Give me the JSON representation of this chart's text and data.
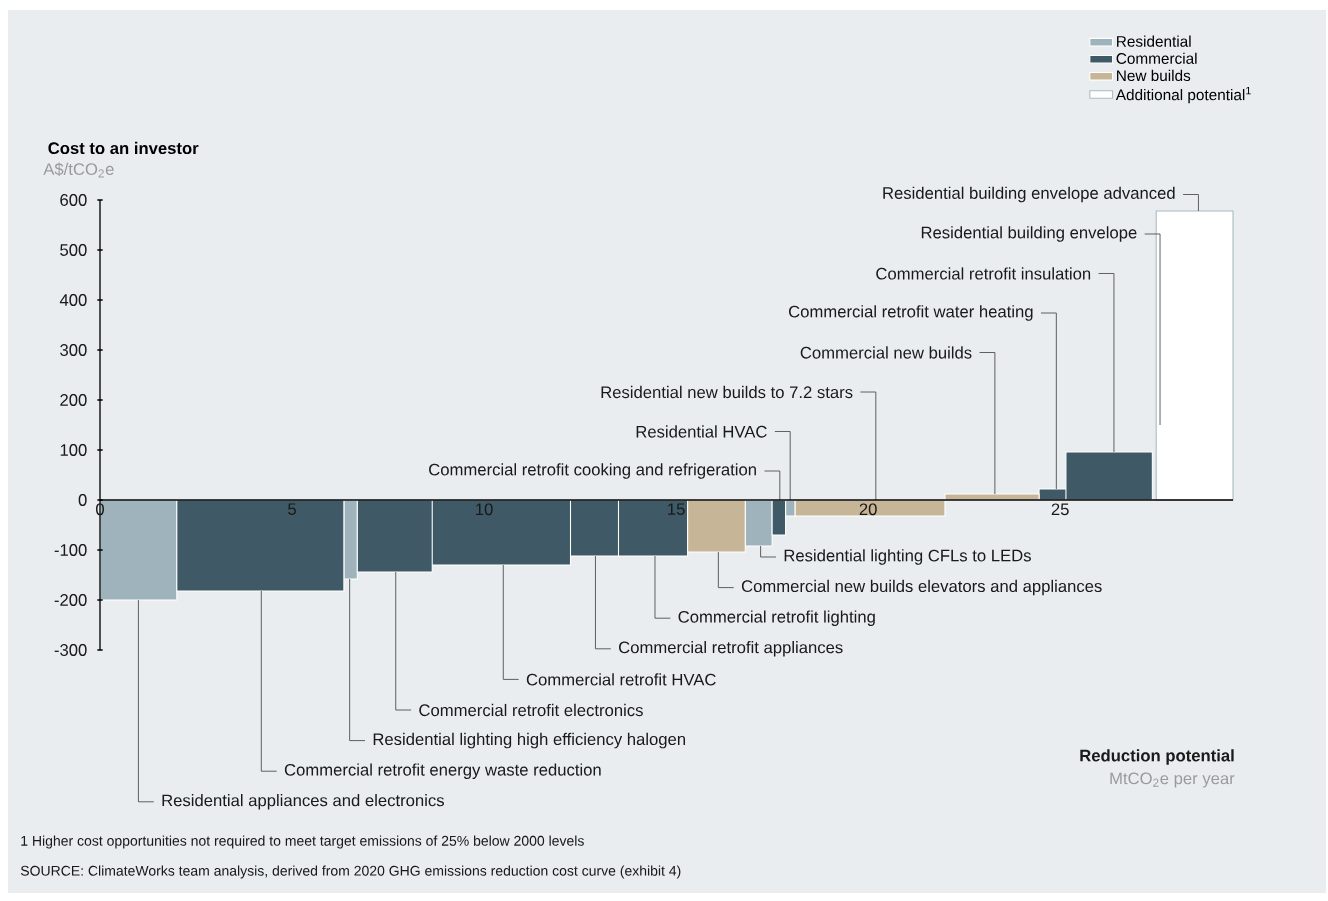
{
  "chart_data": {
    "type": "area",
    "ylabel": "Cost to an investor",
    "xlim": [
      0,
      29.5
    ],
    "xticks": [
      0,
      5,
      10,
      15,
      20,
      25
    ],
    "ylim": [
      -300,
      600
    ],
    "yticks": [
      -300,
      -200,
      -100,
      0,
      100,
      200,
      300,
      400,
      500,
      600
    ],
    "legend": "top right",
    "series": [
      {
        "name": "Residential",
        "color": "#9fb3bd",
        "x": [
          0,
          0,
          2,
          2,
          6.35,
          6.35,
          6.7,
          6.7,
          16.8,
          16.8,
          17.5,
          17.5,
          17.85,
          17.85,
          18.1,
          18.1
        ],
        "values": [
          0,
          -200,
          -200,
          0,
          0,
          -158,
          -158,
          0,
          0,
          -92,
          -92,
          0,
          0,
          -32,
          -32,
          0
        ]
      },
      {
        "name": "Commercial",
        "color": "#3f5a66",
        "x": [
          2,
          2,
          6.35,
          6.35,
          6.7,
          6.7,
          8.65,
          8.65,
          8.65,
          8.65,
          12.25,
          12.25,
          12.25,
          12.25,
          13.5,
          13.5,
          13.5,
          13.5,
          15.3,
          15.3,
          17.5,
          17.5,
          17.85,
          17.85,
          24.45,
          24.45,
          25.15,
          25.15,
          25.15,
          25.15,
          27.4,
          27.4
        ],
        "values": [
          0,
          -182,
          -182,
          0,
          0,
          -144,
          -144,
          0,
          0,
          -130,
          -130,
          0,
          0,
          -112,
          -112,
          0,
          0,
          -112,
          -112,
          0,
          0,
          -70,
          -70,
          0,
          0,
          22,
          22,
          0,
          0,
          96,
          96,
          0
        ]
      },
      {
        "name": "New builds",
        "color": "#c6b596",
        "x": [
          15.3,
          15.3,
          16.8,
          16.8,
          18.1,
          18.1,
          22,
          22,
          22,
          22,
          24.45,
          24.45
        ],
        "values": [
          0,
          -104,
          -104,
          0,
          0,
          -32,
          -32,
          0,
          0,
          12,
          12,
          0
        ]
      },
      {
        "name": "Additional potential$^{1}$",
        "color": "#ffffff",
        "x": [
          27.5,
          27.5,
          29.5,
          29.5
        ],
        "values": [
          0,
          578,
          578,
          0
        ]
      }
    ],
    "annotations": [
      "A$/tCO$_{2}$e",
      "**Reduction potential**",
      "MtCO$_{2}$e per year",
      "1 Higher cost opportunities not required to meet target emissions of 25% below 2000 levels",
      "SOURCE: ClimateWorks team analysis, derived from 2020 GHG emissions reduction cost curve (exhibit 4)",
      {
        "text": "Residential appliances and electronics",
        "x": 1.0,
        "y": -200
      },
      {
        "text": "Commercial retrofit energy waste reduction",
        "x": 4.2,
        "y": -182
      },
      {
        "text": "Residential lighting high efficiency halogen",
        "x": 6.5,
        "y": -158
      },
      {
        "text": "Commercial retrofit electronics",
        "x": 7.7,
        "y": -144
      },
      {
        "text": "Commercial retrofit HVAC",
        "x": 10.5,
        "y": -130
      },
      {
        "text": "Commercial retrofit appliances",
        "x": 12.9,
        "y": -112
      },
      {
        "text": "Commercial retrofit lighting",
        "x": 14.45,
        "y": -112
      },
      {
        "text": "Commercial new builds elevators and appliances",
        "x": 16.1,
        "y": -104
      },
      {
        "text": "Residential lighting CFLs to LEDs",
        "x": 17.2,
        "y": -92
      },
      {
        "text": "Commercial retrofit cooking and refrigeration",
        "x": 17.7,
        "y": 0
      },
      {
        "text": "Residential HVAC",
        "x": 17.97,
        "y": 0
      },
      {
        "text": "Residential new builds to 7.2 stars",
        "x": 20.2,
        "y": 0
      },
      {
        "text": "Commercial new builds",
        "x": 23.3,
        "y": 12
      },
      {
        "text": "Commercial retrofit water heating",
        "x": 24.9,
        "y": 22
      },
      {
        "text": "Commercial retrofit insulation",
        "x": 26.4,
        "y": 96
      },
      {
        "text": "Residential building envelope",
        "x": 27.6,
        "y": 150
      },
      {
        "text": "Residential building envelope advanced",
        "x": 28.6,
        "y": 578
      }
    ]
  }
}
